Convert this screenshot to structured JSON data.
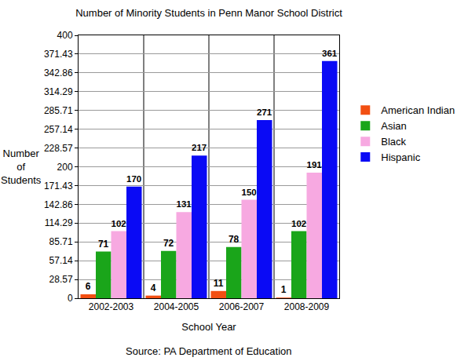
{
  "chart_data": {
    "type": "bar",
    "title": "Number of Minority Students in Penn Manor School District",
    "x_label": "School Year",
    "y_label": "Number of Students",
    "annotations": [
      "Source: PA Department of Education"
    ],
    "categories": [
      "2002-2003",
      "2004-2005",
      "2006-2007",
      "2008-2009"
    ],
    "series": [
      {
        "name": "American Indian",
        "color": "#f24f12",
        "values": [
          6,
          4,
          11,
          1
        ]
      },
      {
        "name": "Asian",
        "color": "#1aa51a",
        "values": [
          71,
          72,
          78,
          102
        ]
      },
      {
        "name": "Black",
        "color": "#f7a9e1",
        "values": [
          102,
          131,
          150,
          191
        ]
      },
      {
        "name": "Hispanic",
        "color": "#0a0af5",
        "values": [
          170,
          217,
          271,
          361
        ]
      }
    ],
    "ylim": [
      0,
      400
    ],
    "yticks": [
      0,
      28.57,
      57.14,
      85.71,
      114.29,
      142.86,
      171.43,
      200,
      228.57,
      257.14,
      285.71,
      314.29,
      342.86,
      371.43,
      400
    ],
    "grid": true,
    "legend": "right",
    "data_labels": true
  }
}
